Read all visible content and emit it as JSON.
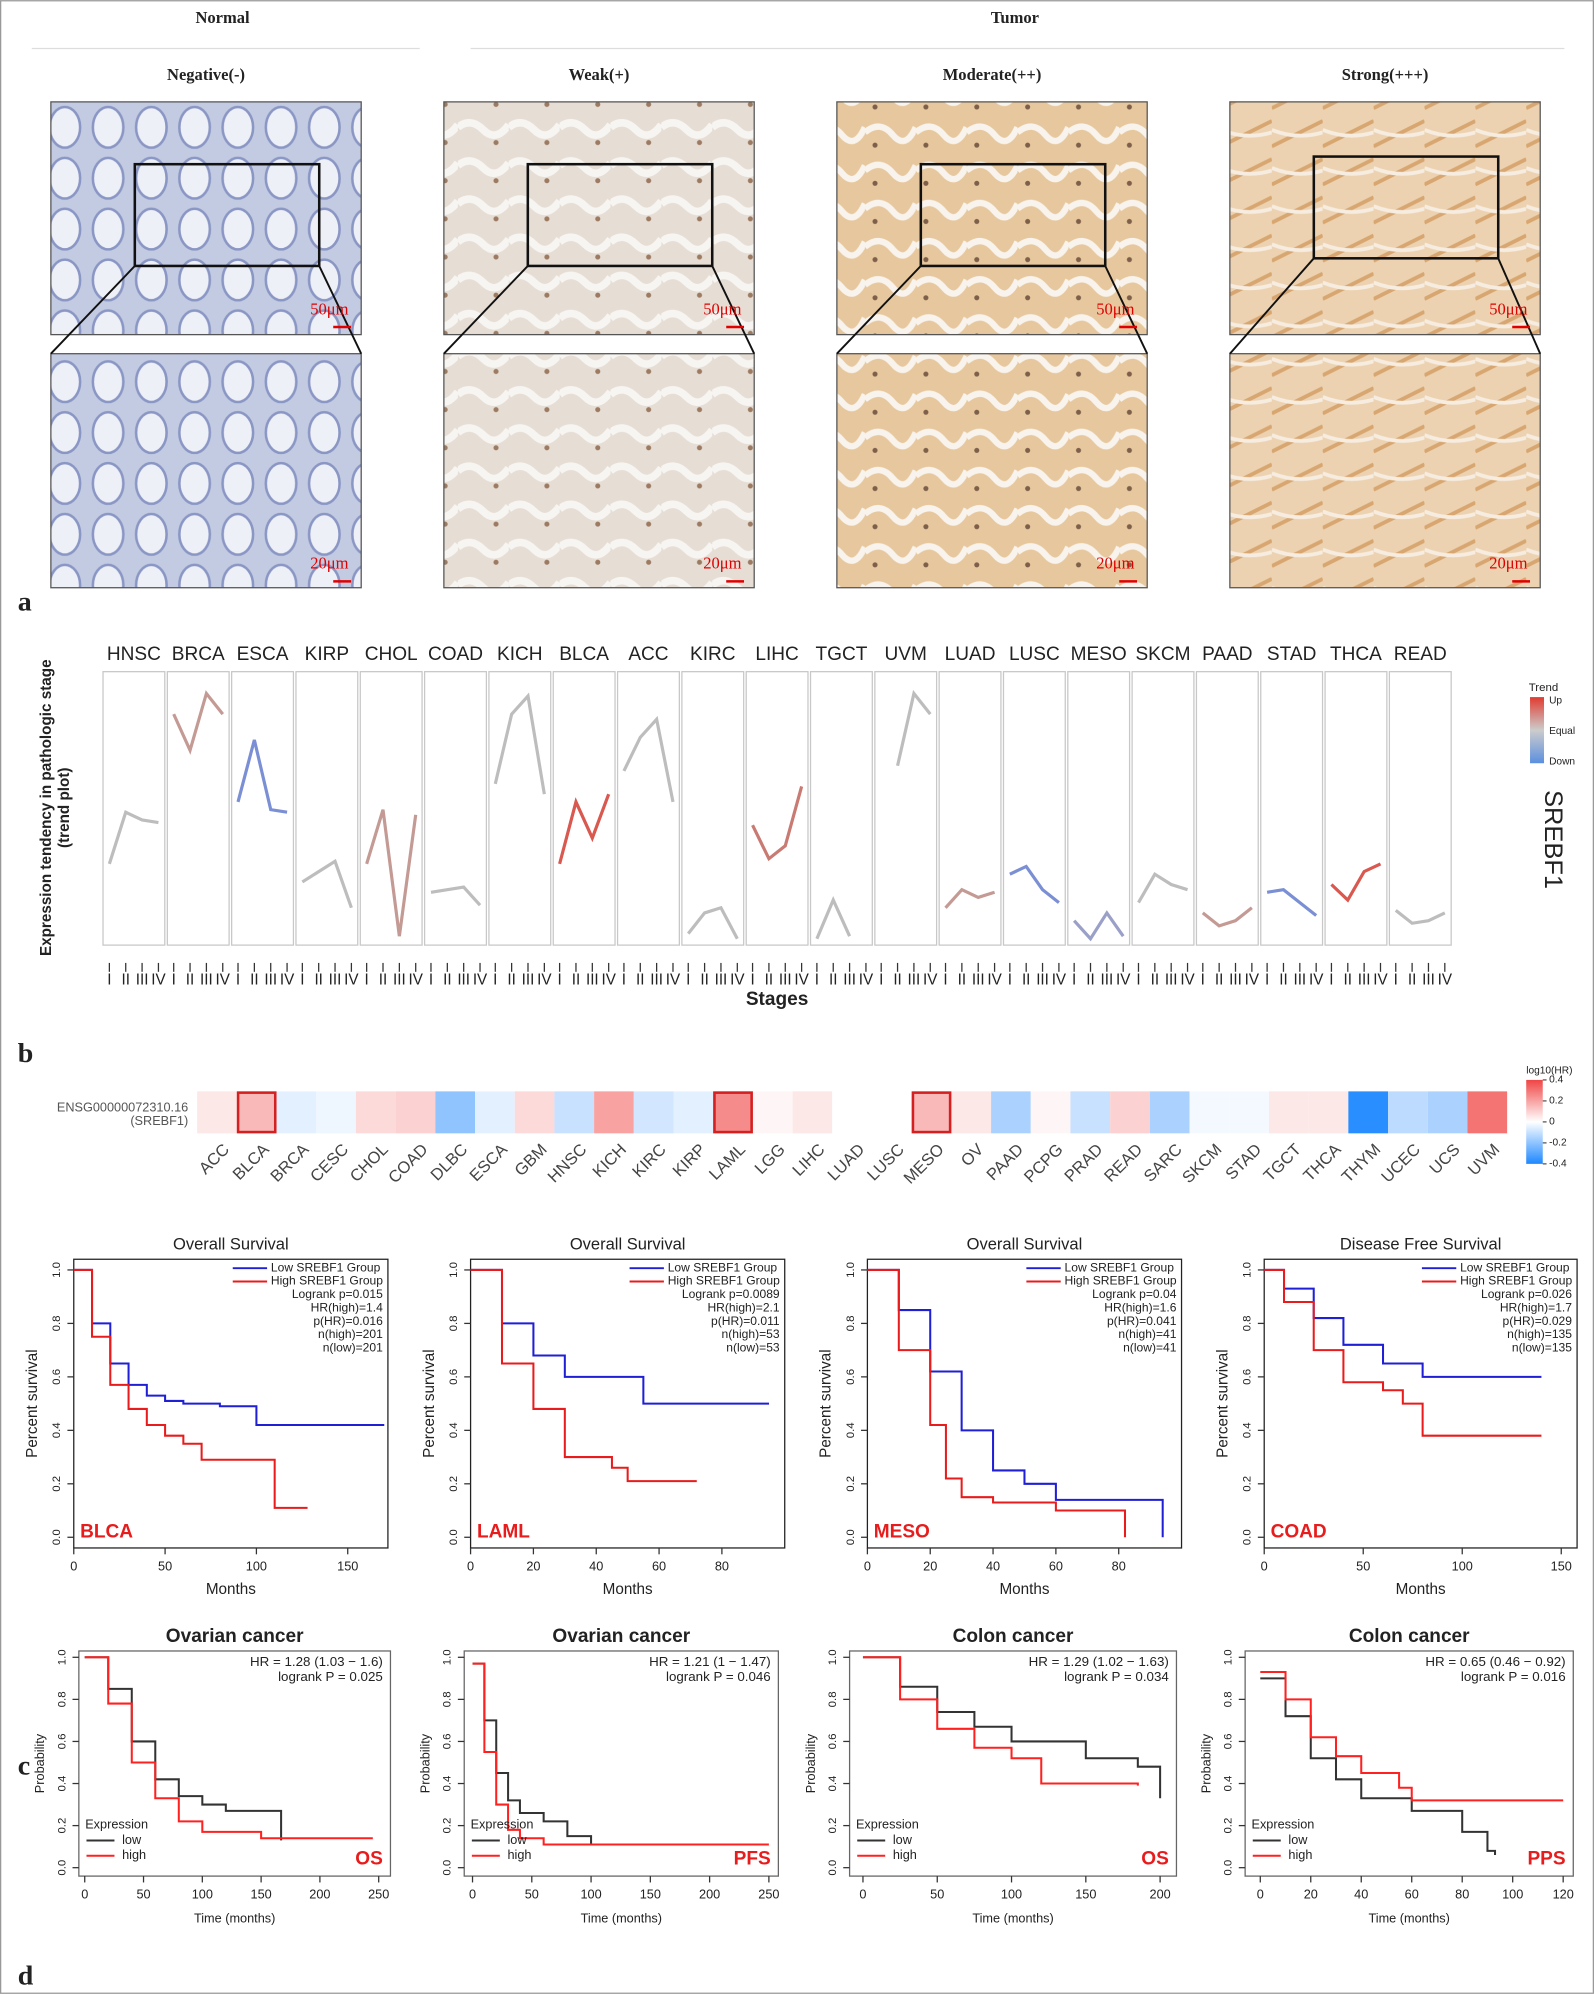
{
  "panel_labels": [
    "a",
    "b",
    "c",
    "d"
  ],
  "panel_a": {
    "groups": [
      "Normal",
      "Tumor"
    ],
    "columns": [
      {
        "title": "Negative(-)",
        "scale_top": "50μm",
        "scale_bottom": "20μm"
      },
      {
        "title": "Weak(+)",
        "scale_top": "50μm",
        "scale_bottom": "20μm"
      },
      {
        "title": "Moderate(++)",
        "scale_top": "50μm",
        "scale_bottom": "20μm"
      },
      {
        "title": "Strong(+++)",
        "scale_top": "50μm",
        "scale_bottom": "20μm"
      }
    ]
  },
  "chart_data": [
    {
      "type": "trend",
      "y_label": [
        "Expression  tendency in pathologic stage",
        "(trend plot)"
      ],
      "x_label": "Stages",
      "gene": "SREBF1",
      "stages": [
        "I",
        "II",
        "III",
        "IV"
      ],
      "ylim": [
        0,
        1
      ],
      "legend": {
        "title": "Trend",
        "labels": [
          "Up",
          "Equal",
          "Down"
        ],
        "colors": [
          "#e03c31",
          "#cccccc",
          "#5b8fe0"
        ]
      },
      "facets": [
        {
          "name": "HNSC",
          "color": "#bdbdbd",
          "values": [
            0.29,
            0.49,
            0.46,
            0.45
          ]
        },
        {
          "name": "BRCA",
          "color": "#c49a94",
          "values": [
            0.87,
            0.73,
            0.95,
            0.87
          ]
        },
        {
          "name": "ESCA",
          "color": "#7b8fd4",
          "values": [
            0.53,
            0.77,
            0.5,
            0.49
          ]
        },
        {
          "name": "KIRP",
          "color": "#bdbdbd",
          "values": [
            0.22,
            0.26,
            0.3,
            0.12
          ]
        },
        {
          "name": "CHOL",
          "color": "#c49a94",
          "values": [
            0.29,
            0.5,
            0.01,
            0.48
          ]
        },
        {
          "name": "COAD",
          "color": "#bdbdbd",
          "values": [
            0.18,
            0.19,
            0.2,
            0.13
          ]
        },
        {
          "name": "KICH",
          "color": "#bdbdbd",
          "values": [
            0.6,
            0.87,
            0.94,
            0.56
          ]
        },
        {
          "name": "BLCA",
          "color": "#d9584f",
          "values": [
            0.29,
            0.53,
            0.39,
            0.56
          ]
        },
        {
          "name": "ACC",
          "color": "#bdbdbd",
          "values": [
            0.65,
            0.78,
            0.85,
            0.53
          ]
        },
        {
          "name": "KIRC",
          "color": "#bdbdbd",
          "values": [
            0.02,
            0.1,
            0.12,
            0.0
          ]
        },
        {
          "name": "LIHC",
          "color": "#c97a72",
          "values": [
            0.44,
            0.31,
            0.36,
            0.59
          ]
        },
        {
          "name": "TGCT",
          "color": "#bdbdbd",
          "values": [
            0.0,
            0.15,
            0.01,
            null
          ]
        },
        {
          "name": "UVM",
          "color": "#bdbdbd",
          "values": [
            null,
            0.67,
            0.95,
            0.87
          ]
        },
        {
          "name": "LUAD",
          "color": "#c49a94",
          "values": [
            0.12,
            0.19,
            0.16,
            0.18
          ]
        },
        {
          "name": "LUSC",
          "color": "#7b8fd4",
          "values": [
            0.25,
            0.28,
            0.19,
            0.14
          ]
        },
        {
          "name": "MESO",
          "color": "#9aa0c8",
          "values": [
            0.07,
            0.0,
            0.1,
            0.01
          ]
        },
        {
          "name": "SKCM",
          "color": "#bdbdbd",
          "values": [
            0.14,
            0.25,
            0.21,
            0.19
          ]
        },
        {
          "name": "PAAD",
          "color": "#c49a94",
          "values": [
            0.1,
            0.05,
            0.07,
            0.12
          ]
        },
        {
          "name": "STAD",
          "color": "#7b8fd4",
          "values": [
            0.18,
            0.19,
            0.14,
            0.09
          ]
        },
        {
          "name": "THCA",
          "color": "#d9584f",
          "values": [
            0.21,
            0.15,
            0.26,
            0.29
          ]
        },
        {
          "name": "READ",
          "color": "#bdbdbd",
          "values": [
            0.11,
            0.06,
            0.07,
            0.1
          ]
        }
      ]
    },
    {
      "type": "heatmap",
      "row_label": [
        "ENSG00000072310.16",
        "(SREBF1)"
      ],
      "categories": [
        "ACC",
        "BLCA",
        "BRCA",
        "CESC",
        "CHOL",
        "COAD",
        "DLBC",
        "ESCA",
        "GBM",
        "HNSC",
        "KICH",
        "KIRC",
        "KIRP",
        "LAML",
        "LGG",
        "LIHC",
        "LUAD",
        "LUSC",
        "MESO",
        "OV",
        "PAAD",
        "PCPG",
        "PRAD",
        "READ",
        "SARC",
        "SKCM",
        "STAD",
        "TGCT",
        "THCA",
        "THYM",
        "UCEC",
        "UCS",
        "UVM"
      ],
      "values": [
        0.05,
        0.15,
        -0.05,
        -0.03,
        0.08,
        0.1,
        -0.2,
        -0.05,
        0.08,
        -0.1,
        0.2,
        -0.08,
        -0.05,
        0.25,
        0.02,
        0.05,
        0,
        0,
        0.15,
        0.05,
        -0.15,
        0.02,
        -0.1,
        0.1,
        -0.15,
        -0.02,
        -0.02,
        0.05,
        0.05,
        -0.38,
        -0.12,
        -0.15,
        0.3
      ],
      "highlight": [
        false,
        true,
        false,
        false,
        false,
        false,
        false,
        false,
        false,
        false,
        false,
        false,
        false,
        true,
        false,
        false,
        false,
        false,
        true,
        false,
        false,
        false,
        false,
        false,
        false,
        false,
        false,
        false,
        false,
        false,
        false,
        false,
        false
      ],
      "colorbar": {
        "title": "log10(HR)",
        "lim": [
          -0.4,
          0.4
        ],
        "ticks": [
          0.4,
          0.2,
          0,
          -0.2,
          -0.4
        ],
        "colors": [
          "#f04545",
          "#ffffff",
          "#1e88ff"
        ]
      }
    },
    {
      "type": "km",
      "title": "Overall Survival",
      "x_label": "Months",
      "y_label": "Percent survival",
      "tag": "BLCA",
      "legend_corner": "top-right",
      "xlim": [
        0,
        172
      ],
      "xticks": [
        0,
        50,
        100,
        150
      ],
      "ylim": [
        -0.04,
        1.04
      ],
      "yticks": [
        {
          "value": 0,
          "label": "0.0"
        },
        0.2,
        0.4,
        0.6,
        0.8,
        {
          "value": 1,
          "label": "1.0"
        }
      ],
      "series": [
        {
          "name": "Low SREBF1 Group",
          "color": "#1f1fd6",
          "x": [
            0,
            10,
            20,
            30,
            40,
            50,
            60,
            80,
            100,
            170
          ],
          "values": [
            1,
            0.8,
            0.65,
            0.57,
            0.53,
            0.51,
            0.5,
            0.49,
            0.42,
            0.42
          ]
        },
        {
          "name": "High SREBF1 Group",
          "color": "#e81c1c",
          "x": [
            0,
            10,
            20,
            30,
            40,
            50,
            60,
            70,
            100,
            110,
            128
          ],
          "values": [
            1,
            0.75,
            0.57,
            0.48,
            0.42,
            0.38,
            0.35,
            0.29,
            0.29,
            0.11,
            0.11
          ]
        }
      ],
      "stats": [
        "Logrank p=0.015",
        "HR(high)=1.4",
        "p(HR)=0.016",
        "n(high)=201",
        "n(low)=201"
      ]
    },
    {
      "type": "km",
      "title": "Overall Survival",
      "x_label": "Months",
      "y_label": "Percent survival",
      "tag": "LAML",
      "legend_corner": "top-right",
      "xlim": [
        0,
        100
      ],
      "xticks": [
        0,
        20,
        40,
        60,
        80
      ],
      "ylim": [
        -0.04,
        1.04
      ],
      "yticks": [
        {
          "value": 0,
          "label": "0.0"
        },
        0.2,
        0.4,
        0.6,
        0.8,
        {
          "value": 1,
          "label": "1.0"
        }
      ],
      "series": [
        {
          "name": "Low SREBF1 Group",
          "color": "#1f1fd6",
          "x": [
            0,
            10,
            20,
            30,
            40,
            55,
            95
          ],
          "values": [
            1,
            0.8,
            0.68,
            0.6,
            0.6,
            0.5,
            0.5
          ]
        },
        {
          "name": "High SREBF1 Group",
          "color": "#e81c1c",
          "x": [
            0,
            10,
            20,
            30,
            45,
            50,
            72
          ],
          "values": [
            1,
            0.65,
            0.48,
            0.3,
            0.26,
            0.21,
            0.21
          ]
        }
      ],
      "stats": [
        "Logrank p=0.0089",
        "HR(high)=2.1",
        "p(HR)=0.011",
        "n(high)=53",
        "n(low)=53"
      ]
    },
    {
      "type": "km",
      "title": "Overall Survival",
      "x_label": "Months",
      "y_label": "Percent survival",
      "tag": "MESO",
      "legend_corner": "top-right",
      "xlim": [
        0,
        100
      ],
      "xticks": [
        0,
        20,
        40,
        60,
        80
      ],
      "ylim": [
        -0.04,
        1.04
      ],
      "yticks": [
        {
          "value": 0,
          "label": "0.0"
        },
        0.2,
        0.4,
        0.6,
        0.8,
        {
          "value": 1,
          "label": "1.0"
        }
      ],
      "series": [
        {
          "name": "Low SREBF1 Group",
          "color": "#1f1fd6",
          "x": [
            0,
            10,
            20,
            30,
            40,
            50,
            60,
            94,
            94
          ],
          "values": [
            1,
            0.85,
            0.62,
            0.4,
            0.25,
            0.2,
            0.14,
            0.12,
            0
          ]
        },
        {
          "name": "High SREBF1 Group",
          "color": "#e81c1c",
          "x": [
            0,
            10,
            20,
            25,
            30,
            40,
            60,
            82,
            82
          ],
          "values": [
            1,
            0.7,
            0.42,
            0.22,
            0.15,
            0.13,
            0.1,
            0.1,
            0
          ]
        }
      ],
      "stats": [
        "Logrank p=0.04",
        "HR(high)=1.6",
        "p(HR)=0.041",
        "n(high)=41",
        "n(low)=41"
      ]
    },
    {
      "type": "km",
      "title": "Disease Free Survival",
      "x_label": "Months",
      "y_label": "Percent survival",
      "tag": "COAD",
      "legend_corner": "top-right",
      "xlim": [
        0,
        158
      ],
      "xticks": [
        0,
        50,
        100,
        150
      ],
      "ylim": [
        -0.04,
        1.04
      ],
      "yticks": [
        {
          "value": 0,
          "label": "0.0"
        },
        0.2,
        0.4,
        0.6,
        0.8,
        {
          "value": 1,
          "label": "1.0"
        }
      ],
      "series": [
        {
          "name": "Low SREBF1 Group",
          "color": "#1f1fd6",
          "x": [
            0,
            10,
            25,
            40,
            60,
            80,
            85,
            140
          ],
          "values": [
            1,
            0.93,
            0.82,
            0.72,
            0.65,
            0.6,
            0.6,
            0.6
          ]
        },
        {
          "name": "High SREBF1 Group",
          "color": "#e81c1c",
          "x": [
            0,
            10,
            25,
            40,
            60,
            70,
            80,
            140
          ],
          "values": [
            1,
            0.88,
            0.7,
            0.58,
            0.55,
            0.5,
            0.38,
            0.38
          ]
        }
      ],
      "stats": [
        "Logrank p=0.026",
        "HR(high)=1.7",
        "p(HR)=0.029",
        "n(high)=135",
        "n(low)=135"
      ]
    },
    {
      "type": "km",
      "title": "Ovarian cancer",
      "title_bold": true,
      "x_label": "Time (months)",
      "y_label": "Probability",
      "tag": "OS",
      "legend_corner": "bottom-left",
      "legend_title": "Expression",
      "xlim": [
        -5,
        260
      ],
      "xticks": [
        0,
        50,
        100,
        150,
        200,
        250
      ],
      "ylim": [
        -0.04,
        1.03
      ],
      "yticks": [
        {
          "value": 0,
          "label": "0.0"
        },
        0.2,
        0.4,
        0.6,
        0.8,
        {
          "value": 1,
          "label": "1.0"
        }
      ],
      "series": [
        {
          "name": "low",
          "color": "#333333",
          "x": [
            0,
            20,
            40,
            60,
            80,
            100,
            120,
            167,
            167
          ],
          "values": [
            1,
            0.85,
            0.6,
            0.42,
            0.34,
            0.3,
            0.27,
            0.27,
            0.13
          ]
        },
        {
          "name": "high",
          "color": "#ff2020",
          "x": [
            0,
            20,
            40,
            60,
            80,
            100,
            150,
            245
          ],
          "values": [
            1,
            0.78,
            0.5,
            0.33,
            0.22,
            0.17,
            0.14,
            0.14
          ]
        }
      ],
      "stats": [
        "HR = 1.28 (1.03 − 1.6)",
        "logrank P = 0.025"
      ]
    },
    {
      "type": "km",
      "title": "Ovarian cancer",
      "title_bold": true,
      "x_label": "Time (months)",
      "y_label": "Probability",
      "tag": "PFS",
      "legend_corner": "bottom-left",
      "legend_title": "Expression",
      "xlim": [
        -7,
        258
      ],
      "xticks": [
        0,
        50,
        100,
        150,
        200,
        250
      ],
      "ylim": [
        -0.04,
        1.03
      ],
      "yticks": [
        {
          "value": 0,
          "label": "0.0"
        },
        0.2,
        0.4,
        0.6,
        0.8,
        {
          "value": 1,
          "label": "1.0"
        }
      ],
      "series": [
        {
          "name": "low",
          "color": "#333333",
          "x": [
            0,
            10,
            20,
            30,
            40,
            60,
            80,
            100,
            110
          ],
          "values": [
            0.97,
            0.7,
            0.45,
            0.32,
            0.26,
            0.22,
            0.15,
            0.11,
            0.11
          ]
        },
        {
          "name": "high",
          "color": "#ff2020",
          "x": [
            0,
            10,
            20,
            30,
            40,
            60,
            250
          ],
          "values": [
            0.97,
            0.55,
            0.3,
            0.18,
            0.14,
            0.11,
            0.11
          ]
        }
      ],
      "stats": [
        "HR = 1.21 (1 − 1.47)",
        "logrank P = 0.046"
      ]
    },
    {
      "type": "km",
      "title": "Colon cancer",
      "title_bold": true,
      "x_label": "Time (months)",
      "y_label": "Probability",
      "tag": "OS",
      "legend_corner": "bottom-left",
      "legend_title": "Expression",
      "xlim": [
        -9,
        211
      ],
      "xticks": [
        0,
        50,
        100,
        150,
        200
      ],
      "ylim": [
        -0.04,
        1.03
      ],
      "yticks": [
        {
          "value": 0,
          "label": "0.0"
        },
        0.2,
        0.4,
        0.6,
        0.8,
        {
          "value": 1,
          "label": "1.0"
        }
      ],
      "series": [
        {
          "name": "low",
          "color": "#333333",
          "x": [
            0,
            25,
            50,
            75,
            100,
            150,
            185,
            200
          ],
          "values": [
            1,
            0.86,
            0.74,
            0.67,
            0.6,
            0.52,
            0.48,
            0.33
          ]
        },
        {
          "name": "high",
          "color": "#ff2020",
          "x": [
            0,
            25,
            50,
            75,
            100,
            120,
            185
          ],
          "values": [
            1,
            0.8,
            0.66,
            0.57,
            0.52,
            0.4,
            0.39
          ]
        }
      ],
      "stats": [
        "HR = 1.29 (1.02 − 1.63)",
        "logrank P = 0.034"
      ]
    },
    {
      "type": "km",
      "title": "Colon cancer",
      "title_bold": true,
      "x_label": "Time (months)",
      "y_label": "Probability",
      "tag": "PPS",
      "legend_corner": "bottom-left",
      "legend_title": "Expression",
      "xlim": [
        -6,
        124
      ],
      "xticks": [
        0,
        20,
        40,
        60,
        80,
        100,
        120
      ],
      "ylim": [
        -0.04,
        1.03
      ],
      "yticks": [
        {
          "value": 0,
          "label": "0.0"
        },
        0.2,
        0.4,
        0.6,
        0.8,
        {
          "value": 1,
          "label": "1.0"
        }
      ],
      "series": [
        {
          "name": "low",
          "color": "#333333",
          "x": [
            0,
            10,
            20,
            30,
            40,
            60,
            80,
            90,
            93
          ],
          "values": [
            0.9,
            0.72,
            0.52,
            0.42,
            0.33,
            0.27,
            0.17,
            0.08,
            0.06
          ]
        },
        {
          "name": "high",
          "color": "#ff2020",
          "x": [
            0,
            10,
            20,
            30,
            40,
            55,
            60,
            120
          ],
          "values": [
            0.93,
            0.8,
            0.62,
            0.53,
            0.45,
            0.38,
            0.32,
            0.32
          ]
        }
      ],
      "stats": [
        "HR = 0.65 (0.46 − 0.92)",
        "logrank P = 0.016"
      ]
    }
  ]
}
